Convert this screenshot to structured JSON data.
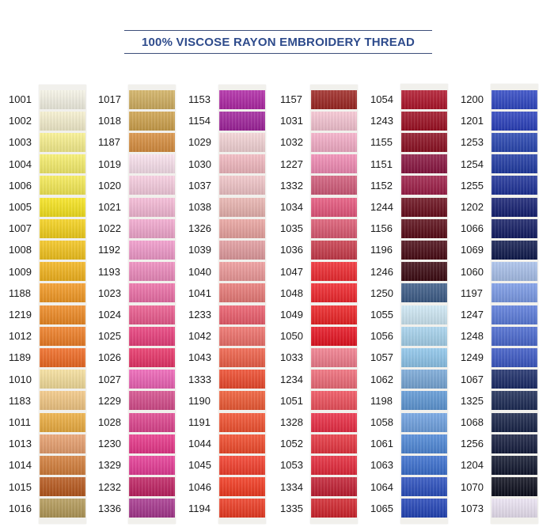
{
  "title": "100% VISCOSE RAYON EMBROIDERY THREAD",
  "columns": [
    {
      "items": [
        {
          "code": "1001",
          "color": "#f6f4e6"
        },
        {
          "code": "1002",
          "color": "#f7f1cf"
        },
        {
          "code": "1003",
          "color": "#faf28e"
        },
        {
          "code": "1004",
          "color": "#f8f06c"
        },
        {
          "code": "1006",
          "color": "#f7ec55"
        },
        {
          "code": "1005",
          "color": "#f8e51c"
        },
        {
          "code": "1007",
          "color": "#f6d21a"
        },
        {
          "code": "1008",
          "color": "#f5c51c"
        },
        {
          "code": "1009",
          "color": "#f5b51c"
        },
        {
          "code": "1188",
          "color": "#f59a23"
        },
        {
          "code": "1219",
          "color": "#f08a22"
        },
        {
          "code": "1012",
          "color": "#f07e24"
        },
        {
          "code": "1189",
          "color": "#f16a22"
        },
        {
          "code": "1010",
          "color": "#f6df9b"
        },
        {
          "code": "1183",
          "color": "#f4c884"
        },
        {
          "code": "1011",
          "color": "#eeae40"
        },
        {
          "code": "1013",
          "color": "#e9a06e"
        },
        {
          "code": "1014",
          "color": "#d47e3a"
        },
        {
          "code": "1015",
          "color": "#b8581c"
        },
        {
          "code": "1016",
          "color": "#b49a58"
        }
      ]
    },
    {
      "items": [
        {
          "code": "1017",
          "color": "#d2b060"
        },
        {
          "code": "1018",
          "color": "#cfa24c"
        },
        {
          "code": "1187",
          "color": "#d98f3f"
        },
        {
          "code": "1019",
          "color": "#fbe2ee"
        },
        {
          "code": "1020",
          "color": "#f8cde0"
        },
        {
          "code": "1021",
          "color": "#f6b9d6"
        },
        {
          "code": "1022",
          "color": "#f3a8cf"
        },
        {
          "code": "1192",
          "color": "#f29acb"
        },
        {
          "code": "1193",
          "color": "#ef8bbe"
        },
        {
          "code": "1023",
          "color": "#ee6fa8"
        },
        {
          "code": "1024",
          "color": "#ec5a8e"
        },
        {
          "code": "1025",
          "color": "#ea3e7c"
        },
        {
          "code": "1026",
          "color": "#e93368"
        },
        {
          "code": "1027",
          "color": "#ee62b6"
        },
        {
          "code": "1229",
          "color": "#d64c8c"
        },
        {
          "code": "1028",
          "color": "#e0448f"
        },
        {
          "code": "1230",
          "color": "#e9368a"
        },
        {
          "code": "1329",
          "color": "#e73b96"
        },
        {
          "code": "1232",
          "color": "#c02162"
        },
        {
          "code": "1336",
          "color": "#a7368e"
        }
      ]
    },
    {
      "items": [
        {
          "code": "1153",
          "color": "#b027a6"
        },
        {
          "code": "1154",
          "color": "#a1239d"
        },
        {
          "code": "1029",
          "color": "#f5d4d6"
        },
        {
          "code": "1030",
          "color": "#f3b9c0"
        },
        {
          "code": "1037",
          "color": "#f2c5c8"
        },
        {
          "code": "1038",
          "color": "#eab4b0"
        },
        {
          "code": "1326",
          "color": "#eba4a0"
        },
        {
          "code": "1039",
          "color": "#e39c9f"
        },
        {
          "code": "1040",
          "color": "#ef9a9a"
        },
        {
          "code": "1041",
          "color": "#ea7b78"
        },
        {
          "code": "1233",
          "color": "#ed5d6c"
        },
        {
          "code": "1042",
          "color": "#f0706a"
        },
        {
          "code": "1043",
          "color": "#f06048"
        },
        {
          "code": "1333",
          "color": "#ef4a2c"
        },
        {
          "code": "1190",
          "color": "#f05a34"
        },
        {
          "code": "1191",
          "color": "#f4512f"
        },
        {
          "code": "1044",
          "color": "#f34a2a"
        },
        {
          "code": "1045",
          "color": "#f53e2b"
        },
        {
          "code": "1046",
          "color": "#f43a20"
        },
        {
          "code": "1194",
          "color": "#ee3b22"
        }
      ]
    },
    {
      "items": [
        {
          "code": "1157",
          "color": "#9e2622"
        },
        {
          "code": "1031",
          "color": "#f7c5d3"
        },
        {
          "code": "1032",
          "color": "#f6aec8"
        },
        {
          "code": "1227",
          "color": "#f28bb4"
        },
        {
          "code": "1332",
          "color": "#d25b7a"
        },
        {
          "code": "1034",
          "color": "#e7567d"
        },
        {
          "code": "1035",
          "color": "#dd5972"
        },
        {
          "code": "1036",
          "color": "#c93a4a"
        },
        {
          "code": "1047",
          "color": "#f12a30"
        },
        {
          "code": "1048",
          "color": "#f2262c"
        },
        {
          "code": "1049",
          "color": "#ee2224"
        },
        {
          "code": "1050",
          "color": "#e81220"
        },
        {
          "code": "1033",
          "color": "#f27c8c"
        },
        {
          "code": "1234",
          "color": "#f06b78"
        },
        {
          "code": "1051",
          "color": "#f0505c"
        },
        {
          "code": "1328",
          "color": "#ec2c44"
        },
        {
          "code": "1052",
          "color": "#e8343f"
        },
        {
          "code": "1053",
          "color": "#e6283a"
        },
        {
          "code": "1334",
          "color": "#c31e32"
        },
        {
          "code": "1335",
          "color": "#d2242c"
        }
      ]
    },
    {
      "items": [
        {
          "code": "1054",
          "color": "#b0142a"
        },
        {
          "code": "1243",
          "color": "#9e0f22"
        },
        {
          "code": "1155",
          "color": "#8d0f21"
        },
        {
          "code": "1151",
          "color": "#8a1440"
        },
        {
          "code": "1152",
          "color": "#9e1d47"
        },
        {
          "code": "1244",
          "color": "#6a0d1b"
        },
        {
          "code": "1156",
          "color": "#5a0b16"
        },
        {
          "code": "1196",
          "color": "#4a0a14"
        },
        {
          "code": "1246",
          "color": "#3c0911"
        },
        {
          "code": "1250",
          "color": "#3c5c88"
        },
        {
          "code": "1055",
          "color": "#cfe9f6"
        },
        {
          "code": "1056",
          "color": "#a6d3ee"
        },
        {
          "code": "1057",
          "color": "#8ec6ec"
        },
        {
          "code": "1062",
          "color": "#78a8d8"
        },
        {
          "code": "1198",
          "color": "#5e98d6"
        },
        {
          "code": "1058",
          "color": "#6fa2e2"
        },
        {
          "code": "1061",
          "color": "#4e88d8"
        },
        {
          "code": "1063",
          "color": "#3a6fd0"
        },
        {
          "code": "1064",
          "color": "#2a4fbf"
        },
        {
          "code": "1065",
          "color": "#2244b8"
        }
      ]
    },
    {
      "items": [
        {
          "code": "1200",
          "color": "#2f47c4"
        },
        {
          "code": "1201",
          "color": "#2a40bd"
        },
        {
          "code": "1253",
          "color": "#2846b2"
        },
        {
          "code": "1254",
          "color": "#1f3aa4"
        },
        {
          "code": "1255",
          "color": "#1d3199"
        },
        {
          "code": "1202",
          "color": "#141f72"
        },
        {
          "code": "1066",
          "color": "#121c64"
        },
        {
          "code": "1069",
          "color": "#0f1a4e"
        },
        {
          "code": "1060",
          "color": "#a9c1ec"
        },
        {
          "code": "1197",
          "color": "#7b9be8"
        },
        {
          "code": "1247",
          "color": "#5b7cdc"
        },
        {
          "code": "1248",
          "color": "#4a69d0"
        },
        {
          "code": "1249",
          "color": "#3b58c5"
        },
        {
          "code": "1067",
          "color": "#1a2b68"
        },
        {
          "code": "1325",
          "color": "#1b2a55"
        },
        {
          "code": "1068",
          "color": "#172348"
        },
        {
          "code": "1256",
          "color": "#141c3e"
        },
        {
          "code": "1204",
          "color": "#10162e"
        },
        {
          "code": "1070",
          "color": "#0b0d1c"
        },
        {
          "code": "1073",
          "color": "#ece4f4"
        }
      ]
    }
  ]
}
